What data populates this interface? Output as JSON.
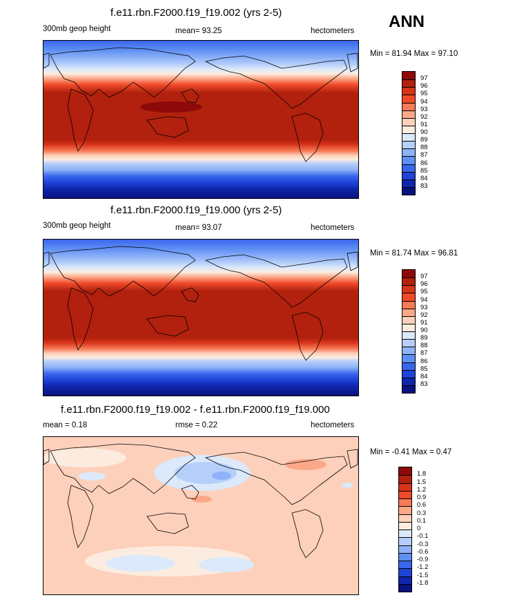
{
  "season": "ANN",
  "palette_levels": {
    "height": [
      "#8e0a0a",
      "#b1210d",
      "#d7341a",
      "#f04a2a",
      "#f77a56",
      "#fba888",
      "#fdd0bb",
      "#fcecdf",
      "#dbe9fb",
      "#b6cffa",
      "#8eb2f7",
      "#5f8ff3",
      "#3a66ec",
      "#1f44d8",
      "#0f26ad",
      "#0a127f"
    ],
    "diff": [
      "#8e0a0a",
      "#b1210d",
      "#d7341a",
      "#f04a2a",
      "#f77a56",
      "#fba888",
      "#fdd0bb",
      "#fcecdf",
      "#dbe9fb",
      "#b6cffa",
      "#8eb2f7",
      "#5f8ff3",
      "#3a66ec",
      "#1f44d8",
      "#0f26ad",
      "#0a127f"
    ]
  },
  "panels": [
    {
      "title": "f.e11.rbn.F2000.f19_f19.002 (yrs 2-5)",
      "left_label": "300mb geop height",
      "center_label": "mean=  93.25",
      "right_label": "hectometers",
      "minmax": "Min =  81.94 Max =  97.10",
      "colorbar_labels": [
        "97",
        "96",
        "95",
        "94",
        "93",
        "92",
        "91",
        "90",
        "89",
        "88",
        "87",
        "86",
        "85",
        "84",
        "83"
      ]
    },
    {
      "title": "f.e11.rbn.F2000.f19_f19.000 (yrs 2-5)",
      "left_label": "300mb geop height",
      "center_label": "mean=  93.07",
      "right_label": "hectometers",
      "minmax": "Min =  81.74 Max =  96.81",
      "colorbar_labels": [
        "97",
        "96",
        "95",
        "94",
        "93",
        "92",
        "91",
        "90",
        "89",
        "88",
        "87",
        "86",
        "85",
        "84",
        "83"
      ]
    },
    {
      "title": "f.e11.rbn.F2000.f19_f19.002 - f.e11.rbn.F2000.f19_f19.000",
      "left_label": "mean =   0.18",
      "center_label": "rmse =   0.22",
      "right_label": "hectometers",
      "minmax": "Min =  -0.41 Max =   0.47",
      "colorbar_labels": [
        "1.8",
        "1.5",
        "1.2",
        "0.9",
        "0.6",
        "0.3",
        "0.1",
        "0",
        "-0.1",
        "-0.3",
        "-0.6",
        "-0.9",
        "-1.2",
        "-1.5",
        "-1.8"
      ]
    }
  ]
}
